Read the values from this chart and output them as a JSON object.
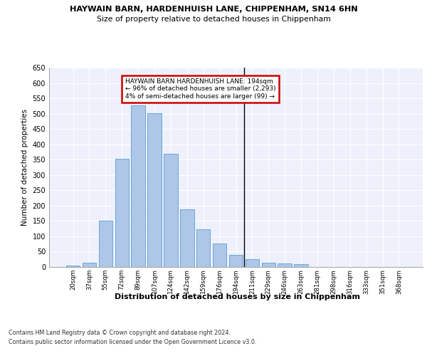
{
  "title_line1": "HAYWAIN BARN, HARDENHUISH LANE, CHIPPENHAM, SN14 6HN",
  "title_line2": "Size of property relative to detached houses in Chippenham",
  "xlabel": "Distribution of detached houses by size in Chippenham",
  "ylabel": "Number of detached properties",
  "categories": [
    "20sqm",
    "37sqm",
    "55sqm",
    "72sqm",
    "89sqm",
    "107sqm",
    "124sqm",
    "142sqm",
    "159sqm",
    "176sqm",
    "194sqm",
    "211sqm",
    "229sqm",
    "246sqm",
    "263sqm",
    "281sqm",
    "298sqm",
    "316sqm",
    "333sqm",
    "351sqm",
    "368sqm"
  ],
  "values": [
    5,
    13,
    150,
    353,
    528,
    502,
    368,
    187,
    122,
    76,
    40,
    26,
    13,
    12,
    10,
    0,
    0,
    0,
    0,
    0,
    0
  ],
  "bar_color": "#aec6e8",
  "bar_edge_color": "#5a9fd4",
  "vline_x_index": 10,
  "vline_color": "#000000",
  "annotation_text": "HAYWAIN BARN HARDENHUISH LANE: 194sqm\n← 96% of detached houses are smaller (2,293)\n4% of semi-detached houses are larger (99) →",
  "annotation_box_color": "#ffffff",
  "annotation_box_edge_color": "#cc0000",
  "ylim": [
    0,
    650
  ],
  "yticks": [
    0,
    50,
    100,
    150,
    200,
    250,
    300,
    350,
    400,
    450,
    500,
    550,
    600,
    650
  ],
  "background_color": "#eef1fb",
  "grid_color": "#ffffff",
  "footer_line1": "Contains HM Land Registry data © Crown copyright and database right 2024.",
  "footer_line2": "Contains public sector information licensed under the Open Government Licence v3.0."
}
